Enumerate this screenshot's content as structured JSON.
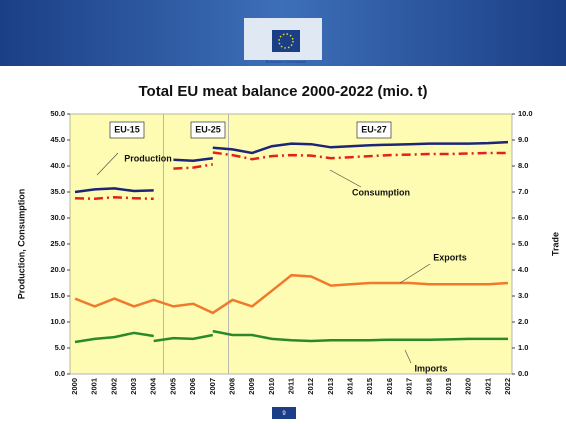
{
  "header": {
    "logo_text": "European Commission"
  },
  "footer": {
    "page": "9"
  },
  "chart_data": {
    "type": "line",
    "title": "Total EU meat balance 2000-2022 (mio. t)",
    "y_label": "Production, Consumption",
    "y2_label": "Trade",
    "categories": [
      "2000",
      "2001",
      "2002",
      "2003",
      "2004",
      "2005",
      "2006",
      "2007",
      "2008",
      "2009",
      "2010",
      "2011",
      "2012",
      "2013",
      "2014",
      "2015",
      "2016",
      "2017",
      "2018",
      "2019",
      "2020",
      "2021",
      "2022"
    ],
    "ylim": [
      0,
      50
    ],
    "yticks": [
      {
        "value": 0,
        "label": "0.0"
      },
      {
        "value": 5,
        "label": "5.0"
      },
      {
        "value": 10,
        "label": "10.0"
      },
      {
        "value": 15,
        "label": "15.0"
      },
      {
        "value": 20,
        "label": "20.0"
      },
      {
        "value": 25,
        "label": "25.0"
      },
      {
        "value": 30,
        "label": "30.0"
      },
      {
        "value": 35,
        "label": "35.0"
      },
      {
        "value": 40,
        "label": "40.0"
      },
      {
        "value": 45,
        "label": "45.0"
      },
      {
        "value": 50,
        "label": "50.0"
      }
    ],
    "y2lim": [
      0,
      10
    ],
    "y2ticks": [
      {
        "value": 0,
        "label": "0.0"
      },
      {
        "value": 1,
        "label": "1.0"
      },
      {
        "value": 2,
        "label": "2.0"
      },
      {
        "value": 3,
        "label": "3.0"
      },
      {
        "value": 4,
        "label": "4.0"
      },
      {
        "value": 5,
        "label": "5.0"
      },
      {
        "value": 6,
        "label": "6.0"
      },
      {
        "value": 7,
        "label": "7.0"
      },
      {
        "value": 8,
        "label": "8.0"
      },
      {
        "value": 9,
        "label": "9.0"
      },
      {
        "value": 10,
        "label": "10.0"
      }
    ],
    "annotations": [
      "EU-15",
      "EU-25",
      "EU-27",
      "Production",
      "Consumption",
      "Exports",
      "Imports"
    ],
    "series": [
      {
        "color": "#1c2579",
        "values": [
          35.0,
          35.5,
          35.7,
          35.2,
          35.3,
          null,
          null,
          null,
          null,
          null,
          null,
          null,
          null,
          null,
          null,
          null,
          null,
          null,
          null,
          null,
          null,
          null,
          null
        ]
      },
      {
        "color": "#1c2579",
        "values": [
          null,
          null,
          null,
          null,
          null,
          41.2,
          41.0,
          41.5,
          null,
          null,
          null,
          null,
          null,
          null,
          null,
          null,
          null,
          null,
          null,
          null,
          null,
          null,
          null
        ]
      },
      {
        "color": "#1c2579",
        "values": [
          null,
          null,
          null,
          null,
          null,
          null,
          null,
          43.5,
          43.2,
          42.5,
          43.8,
          44.3,
          44.2,
          43.6,
          43.8,
          44.0,
          44.1,
          44.2,
          44.3,
          44.3,
          44.3,
          44.4,
          44.6
        ]
      },
      {
        "color": "#e3221c",
        "dashed": true,
        "values": [
          33.8,
          33.7,
          34.0,
          33.8,
          33.7,
          null,
          null,
          null,
          null,
          null,
          null,
          null,
          null,
          null,
          null,
          null,
          null,
          null,
          null,
          null,
          null,
          null,
          null
        ]
      },
      {
        "color": "#e3221c",
        "dashed": true,
        "values": [
          null,
          null,
          null,
          null,
          null,
          39.5,
          39.7,
          40.3,
          null,
          null,
          null,
          null,
          null,
          null,
          null,
          null,
          null,
          null,
          null,
          null,
          null,
          null,
          null
        ]
      },
      {
        "color": "#e3221c",
        "dashed": true,
        "values": [
          null,
          null,
          null,
          null,
          null,
          null,
          null,
          42.6,
          42.1,
          41.3,
          41.9,
          42.1,
          42.0,
          41.5,
          41.7,
          41.9,
          42.1,
          42.2,
          42.3,
          42.3,
          42.4,
          42.5,
          42.5
        ]
      },
      {
        "color": "#f07a2c",
        "axis": "y2",
        "values": [
          2.9,
          2.6,
          2.9,
          2.6,
          2.85,
          2.6,
          2.7,
          2.35,
          2.85,
          2.6,
          3.2,
          3.8,
          3.75,
          3.4,
          3.45,
          3.5,
          3.5,
          3.5,
          3.45,
          3.45,
          3.45,
          3.45,
          3.5
        ]
      },
      {
        "color": "#2a8a2a",
        "axis": "y2",
        "values": [
          1.23,
          1.35,
          1.42,
          1.58,
          1.46,
          null,
          null,
          null,
          null,
          null,
          null,
          null,
          null,
          null,
          null,
          null,
          null,
          null,
          null,
          null,
          null,
          null,
          null
        ]
      },
      {
        "color": "#2a8a2a",
        "axis": "y2",
        "values": [
          null,
          null,
          null,
          null,
          1.27,
          1.38,
          1.35,
          1.5,
          null,
          null,
          null,
          null,
          null,
          null,
          null,
          null,
          null,
          null,
          null,
          null,
          null,
          null,
          null
        ]
      },
      {
        "color": "#2a8a2a",
        "axis": "y2",
        "values": [
          null,
          null,
          null,
          null,
          null,
          null,
          null,
          1.65,
          1.5,
          1.5,
          1.35,
          1.3,
          1.27,
          1.3,
          1.3,
          1.3,
          1.32,
          1.32,
          1.32,
          1.33,
          1.35,
          1.35,
          1.35
        ]
      }
    ]
  }
}
